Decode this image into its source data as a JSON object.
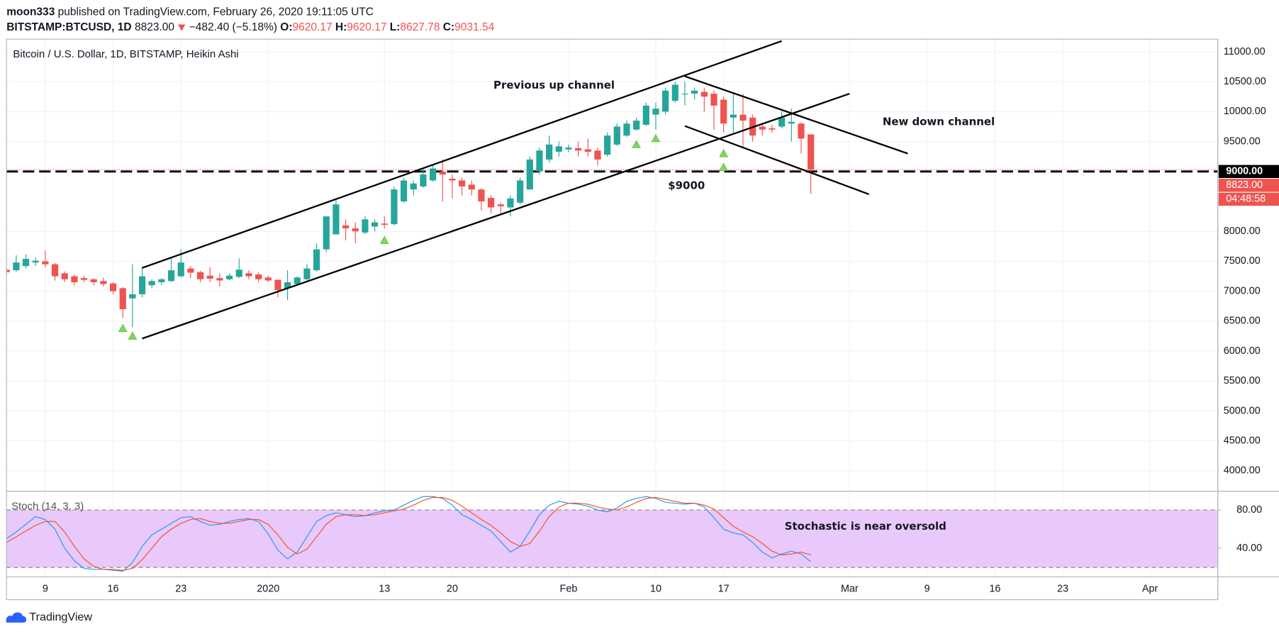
{
  "header": {
    "author": "moon333",
    "published": "published on TradingView.com, February 26, 2020 19:11:05 UTC",
    "symbol": "BITSTAMP:BTCUSD, 1D",
    "change": "−482.40 (−5.18%)",
    "o": "O:",
    "h": "H:",
    "l": "L:",
    "c": "C:"
  },
  "footer": {
    "brand": "TradingView"
  },
  "chart_data": [
    {
      "type": "candlestick",
      "title": "Bitcoin / U.S. Dollar, 1D, BITSTAMP, Heikin Ashi",
      "x": [
        "2019-12-05",
        "2019-12-06",
        "2019-12-07",
        "2019-12-08",
        "2019-12-09",
        "2019-12-10",
        "2019-12-11",
        "2019-12-12",
        "2019-12-13",
        "2019-12-14",
        "2019-12-15",
        "2019-12-16",
        "2019-12-17",
        "2019-12-18",
        "2019-12-19",
        "2019-12-20",
        "2019-12-21",
        "2019-12-22",
        "2019-12-23",
        "2019-12-24",
        "2019-12-25",
        "2019-12-26",
        "2019-12-27",
        "2019-12-28",
        "2019-12-29",
        "2019-12-30",
        "2019-12-31",
        "2020-01-01",
        "2020-01-02",
        "2020-01-03",
        "2020-01-04",
        "2020-01-05",
        "2020-01-06",
        "2020-01-07",
        "2020-01-08",
        "2020-01-09",
        "2020-01-10",
        "2020-01-11",
        "2020-01-12",
        "2020-01-13",
        "2020-01-14",
        "2020-01-15",
        "2020-01-16",
        "2020-01-17",
        "2020-01-18",
        "2020-01-19",
        "2020-01-20",
        "2020-01-21",
        "2020-01-22",
        "2020-01-23",
        "2020-01-24",
        "2020-01-25",
        "2020-01-26",
        "2020-01-27",
        "2020-01-28",
        "2020-01-29",
        "2020-01-30",
        "2020-01-31",
        "2020-02-01",
        "2020-02-02",
        "2020-02-03",
        "2020-02-04",
        "2020-02-05",
        "2020-02-06",
        "2020-02-07",
        "2020-02-08",
        "2020-02-09",
        "2020-02-10",
        "2020-02-11",
        "2020-02-12",
        "2020-02-13",
        "2020-02-14",
        "2020-02-15",
        "2020-02-16",
        "2020-02-17",
        "2020-02-18",
        "2020-02-19",
        "2020-02-20",
        "2020-02-21",
        "2020-02-22",
        "2020-02-23",
        "2020-02-24",
        "2020-02-25",
        "2020-02-26"
      ],
      "open": [
        7360,
        7350,
        7420,
        7480,
        7500,
        7450,
        7300,
        7250,
        7220,
        7200,
        7170,
        7130,
        7050,
        6880,
        6950,
        7100,
        7150,
        7170,
        7250,
        7380,
        7320,
        7260,
        7220,
        7200,
        7240,
        7300,
        7280,
        7230,
        7190,
        7050,
        7120,
        7200,
        7350,
        7700,
        7950,
        8100,
        8050,
        7980,
        8080,
        8130,
        8120,
        8500,
        8700,
        8750,
        8850,
        9000,
        8880,
        8850,
        8780,
        8700,
        8560,
        8450,
        8400,
        8480,
        8700,
        9000,
        9200,
        9330,
        9370,
        9390,
        9370,
        9350,
        9280,
        9450,
        9600,
        9700,
        9780,
        9950,
        10000,
        10180,
        10300,
        10300,
        10330,
        10300,
        10200,
        9900,
        9950,
        9900,
        9750,
        9720,
        9750,
        9800,
        9800,
        9620.17
      ],
      "high": [
        7400,
        7600,
        7620,
        7560,
        7680,
        7470,
        7330,
        7280,
        7260,
        7220,
        7230,
        7150,
        7070,
        7450,
        7400,
        7200,
        7220,
        7550,
        7700,
        7420,
        7340,
        7400,
        7300,
        7300,
        7550,
        7350,
        7320,
        7260,
        7200,
        7350,
        7250,
        7450,
        7800,
        8250,
        8520,
        8200,
        8150,
        8250,
        8200,
        8250,
        8750,
        8900,
        8850,
        9050,
        9100,
        9200,
        8950,
        8900,
        8850,
        8720,
        8600,
        8480,
        8600,
        8900,
        9250,
        9400,
        9600,
        9500,
        9450,
        9500,
        9550,
        9400,
        9650,
        9800,
        9850,
        9900,
        10150,
        10150,
        10400,
        10500,
        10500,
        10400,
        10400,
        10350,
        10250,
        10300,
        10300,
        9950,
        9800,
        9780,
        10000,
        10050,
        9820,
        9620.17
      ],
      "low": [
        7280,
        7320,
        7380,
        7420,
        7400,
        7180,
        7150,
        7100,
        7150,
        7100,
        7080,
        6950,
        6550,
        6400,
        6900,
        7050,
        7100,
        7150,
        7230,
        7220,
        7150,
        7150,
        7080,
        7180,
        7220,
        7200,
        7150,
        7150,
        6900,
        6850,
        7100,
        7180,
        7330,
        7650,
        7950,
        7850,
        7800,
        7950,
        8000,
        8050,
        8100,
        8480,
        8600,
        8730,
        8830,
        8500,
        8550,
        8600,
        8600,
        8350,
        8300,
        8300,
        8250,
        8450,
        8700,
        8950,
        9150,
        9250,
        9320,
        9250,
        9250,
        9100,
        9250,
        9430,
        9580,
        9680,
        9760,
        9700,
        9950,
        10150,
        10100,
        10200,
        10000,
        9700,
        9650,
        9650,
        9400,
        9500,
        9600,
        9650,
        9720,
        9500,
        9300,
        8627.78
      ],
      "close": [
        7320,
        7480,
        7540,
        7510,
        7450,
        7250,
        7200,
        7150,
        7190,
        7150,
        7120,
        7000,
        6700,
        6950,
        7250,
        7170,
        7200,
        7350,
        7480,
        7310,
        7200,
        7210,
        7180,
        7260,
        7360,
        7250,
        7200,
        7180,
        7020,
        7150,
        7230,
        7380,
        7700,
        8250,
        8450,
        8050,
        8000,
        8200,
        8150,
        8110,
        8700,
        8850,
        8800,
        8950,
        9050,
        8950,
        8850,
        8750,
        8700,
        8500,
        8400,
        8420,
        8550,
        8850,
        9200,
        9350,
        9450,
        9420,
        9400,
        9350,
        9330,
        9200,
        9600,
        9750,
        9800,
        9850,
        10100,
        10050,
        10350,
        10450,
        10300,
        10350,
        10250,
        10100,
        9800,
        9950,
        9850,
        9600,
        9700,
        9700,
        9900,
        9830,
        9550,
        9031.54
      ],
      "up_color": "#26a69a",
      "down_color": "#ef5350",
      "xlim": [
        "2019-12-05",
        "2020-04-08"
      ],
      "xticks": [
        {
          "value": "2019-12-09",
          "label": "9"
        },
        {
          "value": "2019-12-16",
          "label": "16"
        },
        {
          "value": "2019-12-23",
          "label": "23"
        },
        {
          "value": "2020-01-01",
          "label": "2020"
        },
        {
          "value": "2020-01-13",
          "label": "13"
        },
        {
          "value": "2020-01-20",
          "label": "20"
        },
        {
          "value": "2020-02-01",
          "label": "Feb"
        },
        {
          "value": "2020-02-10",
          "label": "10"
        },
        {
          "value": "2020-02-17",
          "label": "17"
        },
        {
          "value": "2020-03-01",
          "label": "Mar"
        },
        {
          "value": "2020-03-09",
          "label": "9"
        },
        {
          "value": "2020-03-16",
          "label": "16"
        },
        {
          "value": "2020-03-23",
          "label": "23"
        },
        {
          "value": "2020-04-01",
          "label": "Apr"
        }
      ],
      "ylim": [
        3660,
        11210
      ],
      "yticks": [
        {
          "value": 11000,
          "label": "11000.00"
        },
        {
          "value": 10500,
          "label": "10500.00"
        },
        {
          "value": 10000,
          "label": "10000.00"
        },
        {
          "value": 9500,
          "label": "9500.00"
        },
        {
          "value": 8000,
          "label": "8000.00"
        },
        {
          "value": 7500,
          "label": "7500.00"
        },
        {
          "value": 7000,
          "label": "7000.00"
        },
        {
          "value": 6500,
          "label": "6500.00"
        },
        {
          "value": 6000,
          "label": "6000.00"
        },
        {
          "value": 5500,
          "label": "5500.00"
        },
        {
          "value": 5000,
          "label": "5000.00"
        },
        {
          "value": 4500,
          "label": "4500.00"
        },
        {
          "value": 4000,
          "label": "4000.00"
        }
      ],
      "grid": true,
      "level": {
        "value": 9000,
        "label": "9000.00"
      },
      "last_price": {
        "value": 8823,
        "label": "8823.00"
      },
      "countdown": "04:48:58",
      "markers": {
        "x": [
          "2019-12-17",
          "2019-12-18",
          "2020-01-13",
          "2020-02-08",
          "2020-02-10",
          "2020-02-17",
          "2020-02-17"
        ],
        "values": [
          6380,
          6250,
          7850,
          9450,
          9550,
          9300,
          9070
        ],
        "color": "#7ed957"
      },
      "trendlines": [
        {
          "x": [
            "2019-12-19",
            "2020-02-23"
          ],
          "values": [
            7390,
            11180
          ]
        },
        {
          "x": [
            "2019-12-19",
            "2020-03-01"
          ],
          "values": [
            6210,
            10300
          ]
        },
        {
          "x": [
            "2020-02-13",
            "2020-03-07"
          ],
          "values": [
            10590,
            9300
          ]
        },
        {
          "x": [
            "2020-02-13",
            "2020-03-03"
          ],
          "values": [
            9760,
            8620
          ]
        }
      ],
      "annotations": [
        "Previous up channel",
        "New down channel",
        "$9000"
      ]
    },
    {
      "type": "line",
      "title": "Stoch (14, 3, 3)",
      "x": [
        "2019-12-05",
        "2019-12-06",
        "2019-12-07",
        "2019-12-08",
        "2019-12-09",
        "2019-12-10",
        "2019-12-11",
        "2019-12-12",
        "2019-12-13",
        "2019-12-14",
        "2019-12-15",
        "2019-12-16",
        "2019-12-17",
        "2019-12-18",
        "2019-12-19",
        "2019-12-20",
        "2019-12-21",
        "2019-12-22",
        "2019-12-23",
        "2019-12-24",
        "2019-12-25",
        "2019-12-26",
        "2019-12-27",
        "2019-12-28",
        "2019-12-29",
        "2019-12-30",
        "2019-12-31",
        "2020-01-01",
        "2020-01-02",
        "2020-01-03",
        "2020-01-04",
        "2020-01-05",
        "2020-01-06",
        "2020-01-07",
        "2020-01-08",
        "2020-01-09",
        "2020-01-10",
        "2020-01-11",
        "2020-01-12",
        "2020-01-13",
        "2020-01-14",
        "2020-01-15",
        "2020-01-16",
        "2020-01-17",
        "2020-01-18",
        "2020-01-19",
        "2020-01-20",
        "2020-01-21",
        "2020-01-22",
        "2020-01-23",
        "2020-01-24",
        "2020-01-25",
        "2020-01-26",
        "2020-01-27",
        "2020-01-28",
        "2020-01-29",
        "2020-01-30",
        "2020-01-31",
        "2020-02-01",
        "2020-02-02",
        "2020-02-03",
        "2020-02-04",
        "2020-02-05",
        "2020-02-06",
        "2020-02-07",
        "2020-02-08",
        "2020-02-09",
        "2020-02-10",
        "2020-02-11",
        "2020-02-12",
        "2020-02-13",
        "2020-02-14",
        "2020-02-15",
        "2020-02-16",
        "2020-02-17",
        "2020-02-18",
        "2020-02-19",
        "2020-02-20",
        "2020-02-21",
        "2020-02-22",
        "2020-02-23",
        "2020-02-24",
        "2020-02-25",
        "2020-02-26"
      ],
      "series": [
        {
          "color": "#2196f3",
          "values": [
            50,
            57,
            65,
            73,
            70,
            60,
            40,
            27,
            19,
            18,
            18,
            17,
            16,
            25,
            42,
            54,
            60,
            66,
            72,
            73,
            68,
            64,
            65,
            68,
            70,
            71,
            68,
            55,
            38,
            29,
            36,
            52,
            68,
            74,
            77,
            75,
            73,
            74,
            77,
            79,
            80,
            85,
            90,
            94,
            94,
            92,
            85,
            75,
            70,
            64,
            58,
            47,
            36,
            42,
            58,
            75,
            85,
            89,
            87,
            86,
            84,
            80,
            78,
            82,
            89,
            92,
            94,
            92,
            88,
            87,
            86,
            87,
            83,
            72,
            60,
            56,
            54,
            46,
            36,
            30,
            34,
            37,
            34,
            26
          ]
        },
        {
          "color": "#f4511e",
          "values": [
            46,
            52,
            58,
            64,
            68,
            68,
            57,
            42,
            29,
            21,
            18,
            18,
            17,
            19,
            28,
            40,
            52,
            60,
            66,
            70,
            71,
            68,
            66,
            66,
            68,
            70,
            70,
            65,
            54,
            41,
            34,
            39,
            52,
            65,
            73,
            75,
            75,
            74,
            75,
            77,
            79,
            81,
            85,
            90,
            93,
            93,
            90,
            84,
            77,
            70,
            64,
            56,
            47,
            42,
            45,
            58,
            73,
            83,
            87,
            87,
            86,
            83,
            81,
            80,
            83,
            88,
            92,
            93,
            91,
            89,
            87,
            87,
            85,
            81,
            72,
            63,
            57,
            52,
            45,
            37,
            33,
            34,
            36,
            33
          ]
        }
      ],
      "ylim": [
        11,
        97
      ],
      "yticks": [
        {
          "value": 80,
          "label": "80.00"
        },
        {
          "value": 40,
          "label": "40.00"
        }
      ],
      "bands": [
        20,
        80
      ],
      "band_color": "#e9c9fb",
      "annotation": "Stochastic is near oversold"
    }
  ]
}
